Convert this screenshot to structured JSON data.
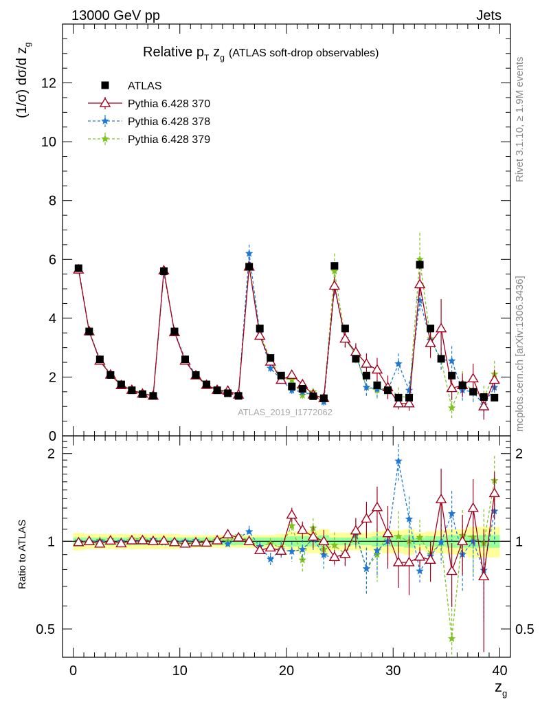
{
  "header": {
    "energy": "13000 GeV pp",
    "process": "Jets",
    "side_top": "Rivet 3.1.10, ≥ 1.9M events",
    "side_bottom": "mcplots.cern.ch [arXiv:1306.3436]",
    "watermark": "ATLAS_2019_I1772062"
  },
  "chart_data": {
    "type": "scatter",
    "title_main": "Relative p",
    "title_sub": "T",
    "title_z": "z",
    "title_zsub": "g",
    "title_rest": "(ATLAS soft-drop observables)",
    "xlabel": "z",
    "xlabel_sub": "g",
    "ylabel_main": "(1/σ) dσ/d z",
    "ylabel_sub": "g",
    "ylabel_ratio": "Ratio to ATLAS",
    "xlim": [
      -1,
      41
    ],
    "ylim": [
      0,
      14
    ],
    "ratio_ylim": [
      0.4,
      2.3
    ],
    "x_ticks": [
      "0",
      "10",
      "20",
      "30",
      "40"
    ],
    "y_ticks": [
      "0",
      "2",
      "4",
      "6",
      "8",
      "10",
      "12"
    ],
    "ratio_ticks": [
      "0.5",
      "1",
      "2"
    ],
    "x": [
      0.5,
      1.5,
      2.5,
      3.5,
      4.5,
      5.5,
      6.5,
      7.5,
      8.5,
      9.5,
      10.5,
      11.5,
      12.5,
      13.5,
      14.5,
      15.5,
      16.5,
      17.5,
      18.5,
      19.5,
      20.5,
      21.5,
      22.5,
      23.5,
      24.5,
      25.5,
      26.5,
      27.5,
      28.5,
      29.5,
      30.5,
      31.5,
      32.5,
      33.5,
      34.5,
      35.5,
      36.5,
      37.5,
      38.5,
      39.5
    ],
    "ratio_band_yellow": [
      0.07,
      0.06,
      0.06,
      0.06,
      0.06,
      0.06,
      0.06,
      0.06,
      0.06,
      0.06,
      0.05,
      0.05,
      0.05,
      0.05,
      0.05,
      0.05,
      0.05,
      0.05,
      0.05,
      0.06,
      0.08,
      0.08,
      0.09,
      0.1,
      0.07,
      0.07,
      0.07,
      0.07,
      0.08,
      0.09,
      0.09,
      0.1,
      0.07,
      0.08,
      0.09,
      0.1,
      0.1,
      0.12,
      0.12,
      0.12
    ],
    "ratio_band_green": [
      0.03,
      0.03,
      0.03,
      0.03,
      0.03,
      0.03,
      0.03,
      0.03,
      0.03,
      0.03,
      0.03,
      0.03,
      0.03,
      0.03,
      0.03,
      0.03,
      0.03,
      0.03,
      0.03,
      0.03,
      0.04,
      0.04,
      0.04,
      0.05,
      0.03,
      0.03,
      0.03,
      0.03,
      0.04,
      0.04,
      0.04,
      0.05,
      0.03,
      0.04,
      0.04,
      0.05,
      0.05,
      0.05,
      0.05,
      0.05
    ],
    "series": [
      {
        "name": "ATLAS",
        "color": "#000000",
        "marker": "square",
        "values": [
          5.7,
          3.55,
          2.6,
          2.07,
          1.75,
          1.55,
          1.42,
          1.36,
          5.6,
          3.55,
          2.6,
          2.07,
          1.75,
          1.55,
          1.45,
          1.36,
          5.75,
          3.65,
          2.65,
          2.05,
          1.68,
          1.6,
          1.35,
          1.28,
          5.78,
          3.65,
          2.62,
          2.05,
          1.72,
          1.55,
          1.3,
          1.3,
          5.82,
          3.65,
          2.62,
          2.05,
          1.72,
          1.5,
          1.32,
          1.3
        ],
        "errors": [
          0.08,
          0.05,
          0.05,
          0.04,
          0.04,
          0.04,
          0.04,
          0.04,
          0.08,
          0.05,
          0.05,
          0.04,
          0.04,
          0.04,
          0.04,
          0.04,
          0.1,
          0.07,
          0.06,
          0.06,
          0.06,
          0.06,
          0.06,
          0.07,
          0.12,
          0.1,
          0.1,
          0.1,
          0.1,
          0.1,
          0.1,
          0.1,
          0.15,
          0.12,
          0.12,
          0.12,
          0.12,
          0.12,
          0.12,
          0.12
        ]
      },
      {
        "name": "Pythia 6.428 370",
        "color": "#a0001e",
        "marker": "triangle",
        "dash": "",
        "values": [
          5.65,
          3.55,
          2.55,
          2.08,
          1.72,
          1.56,
          1.43,
          1.36,
          5.62,
          3.52,
          2.55,
          2.05,
          1.73,
          1.56,
          1.53,
          1.4,
          5.75,
          3.4,
          2.52,
          1.9,
          2.07,
          1.75,
          1.4,
          1.28,
          5.1,
          3.3,
          2.85,
          2.45,
          2.25,
          1.65,
          1.1,
          1.1,
          5.15,
          3.15,
          3.65,
          1.62,
          1.72,
          1.95,
          1.0,
          1.9
        ],
        "errors": [
          0.04,
          0.03,
          0.03,
          0.03,
          0.03,
          0.03,
          0.03,
          0.03,
          0.04,
          0.03,
          0.03,
          0.03,
          0.03,
          0.03,
          0.03,
          0.03,
          0.08,
          0.07,
          0.06,
          0.08,
          0.12,
          0.12,
          0.12,
          0.12,
          0.3,
          0.3,
          0.3,
          0.35,
          0.4,
          0.4,
          0.2,
          0.25,
          0.4,
          0.5,
          1.0,
          0.4,
          0.4,
          0.5,
          0.45,
          0.35
        ]
      },
      {
        "name": "Pythia 6.428 378",
        "color": "#1f78d4",
        "marker": "star",
        "dash": "4,3",
        "values": [
          5.7,
          3.55,
          2.6,
          2.07,
          1.75,
          1.55,
          1.42,
          1.38,
          5.55,
          3.55,
          2.6,
          2.08,
          1.72,
          1.56,
          1.42,
          1.4,
          6.2,
          3.5,
          2.3,
          1.92,
          1.55,
          1.5,
          1.38,
          1.15,
          5.05,
          3.3,
          2.8,
          1.65,
          1.6,
          1.55,
          2.45,
          1.55,
          4.6,
          3.25,
          2.6,
          2.55,
          1.55,
          1.5,
          1.05,
          1.65
        ],
        "errors": [
          0.04,
          0.03,
          0.03,
          0.03,
          0.03,
          0.03,
          0.03,
          0.03,
          0.04,
          0.03,
          0.03,
          0.03,
          0.03,
          0.03,
          0.03,
          0.03,
          0.3,
          0.15,
          0.12,
          0.12,
          0.12,
          0.12,
          0.12,
          0.12,
          0.3,
          0.3,
          0.3,
          0.3,
          0.3,
          0.3,
          0.35,
          0.3,
          0.4,
          0.4,
          0.4,
          0.5,
          0.4,
          0.4,
          0.35,
          0.4
        ]
      },
      {
        "name": "Pythia 6.428 379",
        "color": "#7dc21f",
        "marker": "star",
        "dash": "4,3",
        "values": [
          5.72,
          3.55,
          2.62,
          2.1,
          1.75,
          1.58,
          1.45,
          1.37,
          5.62,
          3.55,
          2.6,
          2.08,
          1.75,
          1.58,
          1.45,
          1.42,
          5.78,
          3.5,
          2.6,
          1.95,
          1.9,
          1.38,
          1.5,
          1.2,
          5.6,
          3.3,
          2.75,
          1.65,
          1.55,
          1.65,
          1.35,
          1.3,
          6.0,
          3.3,
          2.6,
          0.95,
          1.8,
          1.55,
          1.3,
          2.1
        ],
        "errors": [
          0.04,
          0.03,
          0.03,
          0.03,
          0.03,
          0.03,
          0.03,
          0.03,
          0.04,
          0.03,
          0.03,
          0.03,
          0.03,
          0.03,
          0.03,
          0.03,
          0.15,
          0.12,
          0.12,
          0.12,
          0.12,
          0.12,
          0.12,
          0.12,
          0.6,
          0.3,
          0.3,
          0.3,
          0.3,
          0.3,
          0.3,
          0.3,
          0.9,
          0.4,
          0.4,
          0.4,
          0.4,
          0.4,
          0.4,
          0.45
        ]
      }
    ]
  }
}
